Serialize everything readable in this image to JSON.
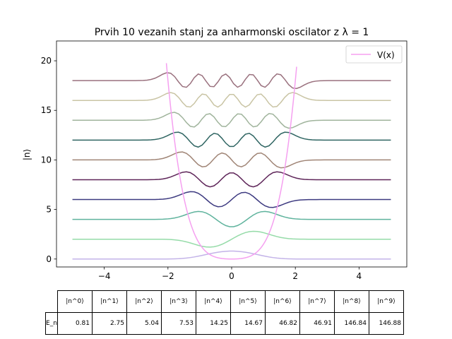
{
  "chart_data": {
    "type": "line",
    "title": "Prvih 10 vezanih stanj za anharmonski oscilator z λ = 1",
    "xlabel": "",
    "ylabel": "|n⟩",
    "xlim": [
      -5.5,
      5.5
    ],
    "ylim": [
      -0.8,
      22
    ],
    "xticks": [
      -4,
      -2,
      0,
      2,
      4
    ],
    "yticks": [
      0,
      5,
      10,
      15,
      20
    ],
    "grid": false,
    "legend_position": "top-right",
    "potential": {
      "name": "V(x)",
      "color": "#f5a0f0",
      "formula": "x^2/2 + x^4"
    },
    "states": [
      {
        "n": 0,
        "offset": 0,
        "color": "#c3b3e8"
      },
      {
        "n": 1,
        "offset": 2,
        "color": "#95dba8"
      },
      {
        "n": 2,
        "offset": 4,
        "color": "#5fb39d"
      },
      {
        "n": 3,
        "offset": 6,
        "color": "#3d3a80"
      },
      {
        "n": 4,
        "offset": 8,
        "color": "#5e2559"
      },
      {
        "n": 5,
        "offset": 10,
        "color": "#a08576"
      },
      {
        "n": 6,
        "offset": 12,
        "color": "#2f6562"
      },
      {
        "n": 7,
        "offset": 14,
        "color": "#a0b49c"
      },
      {
        "n": 8,
        "offset": 16,
        "color": "#c9c4a4"
      },
      {
        "n": 9,
        "offset": 18,
        "color": "#9a717e"
      }
    ]
  },
  "table": {
    "row_label": "E_n",
    "headers": [
      "|n^0⟩",
      "|n^1⟩",
      "|n^2⟩",
      "|n^3⟩",
      "|n^4⟩",
      "|n^5⟩",
      "|n^6⟩",
      "|n^7⟩",
      "|n^8⟩",
      "|n^9⟩"
    ],
    "values": [
      "0.81",
      "2.75",
      "5.04",
      "7.53",
      "14.25",
      "14.67",
      "46.82",
      "46.91",
      "146.84",
      "146.88"
    ]
  }
}
